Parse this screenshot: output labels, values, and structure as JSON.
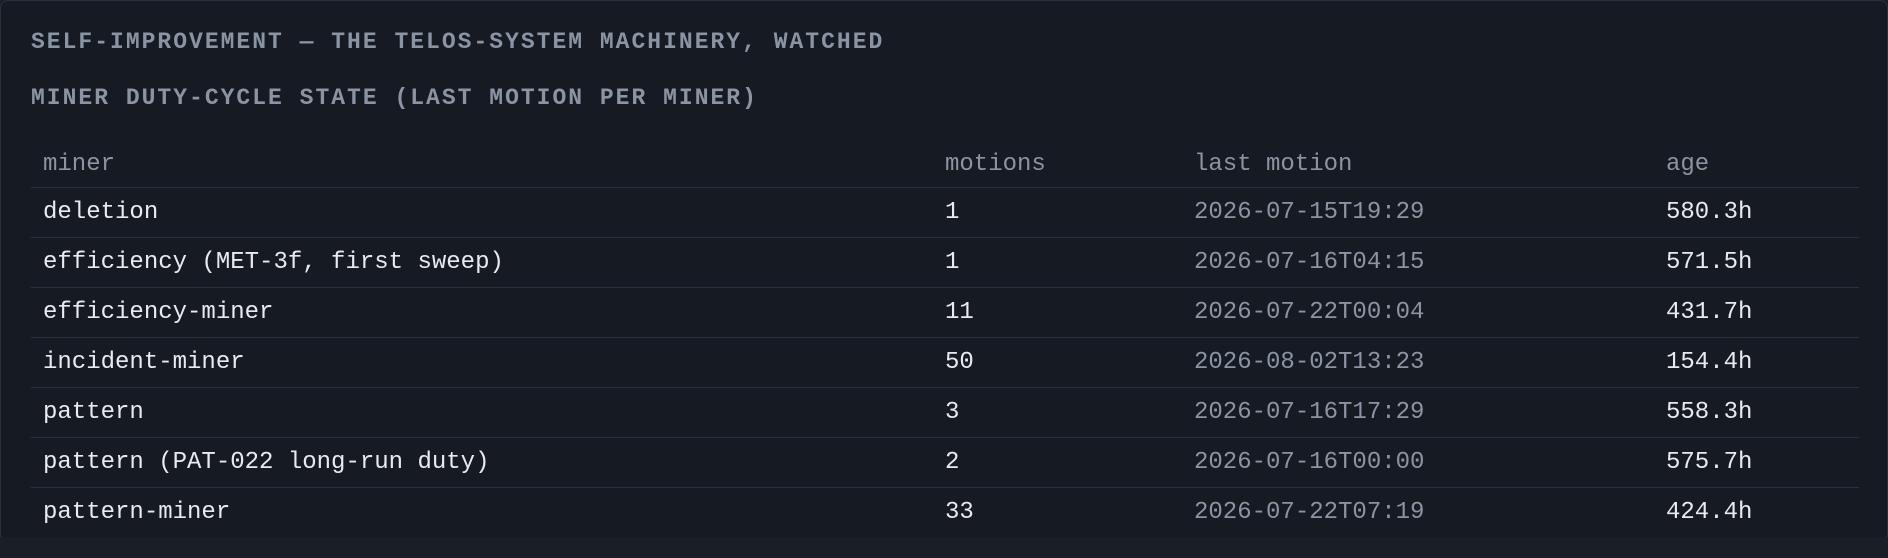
{
  "header": {
    "title": "SELF-IMPROVEMENT — THE TELOS-SYSTEM MACHINERY, WATCHED",
    "subtitle": "MINER DUTY-CYCLE STATE (LAST MOTION PER MINER)"
  },
  "table": {
    "columns": [
      "miner",
      "motions",
      "last motion",
      "age"
    ],
    "rows": [
      [
        "deletion",
        "1",
        "2026-07-15T19:29",
        "580.3h"
      ],
      [
        "efficiency (MET-3f, first sweep)",
        "1",
        "2026-07-16T04:15",
        "571.5h"
      ],
      [
        "efficiency-miner",
        "11",
        "2026-07-22T00:04",
        "431.7h"
      ],
      [
        "incident-miner",
        "50",
        "2026-08-02T13:23",
        "154.4h"
      ],
      [
        "pattern",
        "3",
        "2026-07-16T17:29",
        "558.3h"
      ],
      [
        "pattern (PAT-022 long-run duty)",
        "2",
        "2026-07-16T00:00",
        "575.7h"
      ],
      [
        "pattern-miner",
        "33",
        "2026-07-22T07:19",
        "424.4h"
      ]
    ]
  }
}
